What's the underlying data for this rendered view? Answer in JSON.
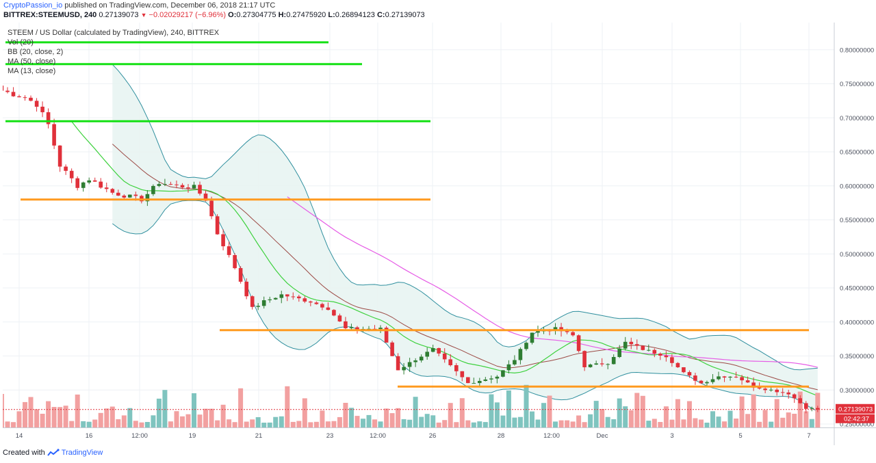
{
  "header": {
    "author": "CryptoPassion_io",
    "published_text": "published on TradingView.com, December 06, 2018 21:17 UTC",
    "symbol": "BITTREX:STEEMUSD, 240",
    "last": "0.27139073",
    "change": "−0.02029217 (−6.96%)",
    "o_label": "O:",
    "o": "0.27304775",
    "h_label": "H:",
    "h": "0.27475920",
    "l_label": "L:",
    "l": "0.26894123",
    "c_label": "C:",
    "c": "0.27139073"
  },
  "legend": {
    "title": "STEEM / US Dollar (calculated by TradingView), 240, BITTREX",
    "vol": "Vol (20)",
    "bb": "BB (20, close, 2)",
    "ma50": "MA (50, close)",
    "ma13": "MA (13, close)"
  },
  "footer": {
    "created_with": "Created with",
    "brand": "TradingView"
  },
  "chart_data": {
    "type": "candlestick",
    "symbol": "BITTREX:STEEMUSD",
    "interval": "240",
    "ylim": [
      0.245,
      0.84
    ],
    "y_ticks": [
      "0.80000000",
      "0.75000000",
      "0.70000000",
      "0.65000000",
      "0.60000000",
      "0.55000000",
      "0.50000000",
      "0.45000000",
      "0.40000000",
      "0.35000000",
      "0.30000000",
      "0.25000000"
    ],
    "x_labels": [
      "14",
      "16",
      "12:00",
      "19",
      "21",
      "23",
      "12:00",
      "26",
      "28",
      "12:00",
      "Dec",
      "3",
      "5",
      "7"
    ],
    "price_label": "0.27139073",
    "countdown_label": "02:42:37",
    "colors": {
      "up": "#2e7d32",
      "down": "#e0303a",
      "vol_up": "#7fc4bf",
      "vol_down": "#f2a0a0",
      "bb": "#2f8f9e",
      "bb_fill": "#e8f4f2",
      "ma50": "#e65ce6",
      "ma13": "#3ed13e",
      "ma20": "#9c4a45",
      "support": "#ff9a1f",
      "resistance": "#14e014",
      "price_line": "#e0303a",
      "grid": "#eef1f5"
    },
    "indicators": [
      "Vol (20)",
      "BB (20, close, 2)",
      "MA (50, close)",
      "MA (13, close)"
    ],
    "green_levels": [
      0.811,
      0.779,
      0.695
    ],
    "orange_levels": [
      0.58,
      0.39,
      0.388,
      0.307,
      0.305
    ],
    "anchors": [
      {
        "date": "Nov 13 12:00",
        "price": 0.74
      },
      {
        "date": "Nov 14 04:00",
        "price": 0.73
      },
      {
        "date": "Nov 14 12:00",
        "price": 0.72
      },
      {
        "date": "Nov 14 20:00",
        "price": 0.69
      },
      {
        "date": "Nov 15 04:00",
        "price": 0.63
      },
      {
        "date": "Nov 15 16:00",
        "price": 0.6
      },
      {
        "date": "Nov 16 00:00",
        "price": 0.61
      },
      {
        "date": "Nov 16 16:00",
        "price": 0.59
      },
      {
        "date": "Nov 17 12:00",
        "price": 0.58
      },
      {
        "date": "Nov 18 00:00",
        "price": 0.605
      },
      {
        "date": "Nov 18 12:00",
        "price": 0.6
      },
      {
        "date": "Nov 19 00:00",
        "price": 0.598
      },
      {
        "date": "Nov 19 08:00",
        "price": 0.58
      },
      {
        "date": "Nov 19 16:00",
        "price": 0.53
      },
      {
        "date": "Nov 20 04:00",
        "price": 0.48
      },
      {
        "date": "Nov 20 16:00",
        "price": 0.42
      },
      {
        "date": "Nov 21 00:00",
        "price": 0.43
      },
      {
        "date": "Nov 21 12:00",
        "price": 0.44
      },
      {
        "date": "Nov 22 08:00",
        "price": 0.43
      },
      {
        "date": "Nov 22 20:00",
        "price": 0.42
      },
      {
        "date": "Nov 23 08:00",
        "price": 0.39
      },
      {
        "date": "Nov 23 20:00",
        "price": 0.39
      },
      {
        "date": "Nov 24 08:00",
        "price": 0.39
      },
      {
        "date": "Nov 24 20:00",
        "price": 0.33
      },
      {
        "date": "Nov 25 08:00",
        "price": 0.345
      },
      {
        "date": "Nov 25 20:00",
        "price": 0.36
      },
      {
        "date": "Nov 26 08:00",
        "price": 0.335
      },
      {
        "date": "Nov 26 20:00",
        "price": 0.31
      },
      {
        "date": "Nov 27 16:00",
        "price": 0.32
      },
      {
        "date": "Nov 28 04:00",
        "price": 0.345
      },
      {
        "date": "Nov 28 16:00",
        "price": 0.385
      },
      {
        "date": "Nov 29 08:00",
        "price": 0.39
      },
      {
        "date": "Nov 29 20:00",
        "price": 0.38
      },
      {
        "date": "Nov 30 04:00",
        "price": 0.335
      },
      {
        "date": "Nov 30 20:00",
        "price": 0.34
      },
      {
        "date": "Dec 01 08:00",
        "price": 0.37
      },
      {
        "date": "Dec 01 20:00",
        "price": 0.36
      },
      {
        "date": "Dec 02 12:00",
        "price": 0.35
      },
      {
        "date": "Dec 03 00:00",
        "price": 0.325
      },
      {
        "date": "Dec 03 12:00",
        "price": 0.31
      },
      {
        "date": "Dec 04 00:00",
        "price": 0.32
      },
      {
        "date": "Dec 04 12:00",
        "price": 0.32
      },
      {
        "date": "Dec 05 00:00",
        "price": 0.305
      },
      {
        "date": "Dec 05 12:00",
        "price": 0.3
      },
      {
        "date": "Dec 06 00:00",
        "price": 0.295
      },
      {
        "date": "Dec 06 12:00",
        "price": 0.274
      },
      {
        "date": "Dec 06 20:00",
        "price": 0.2714
      }
    ]
  }
}
